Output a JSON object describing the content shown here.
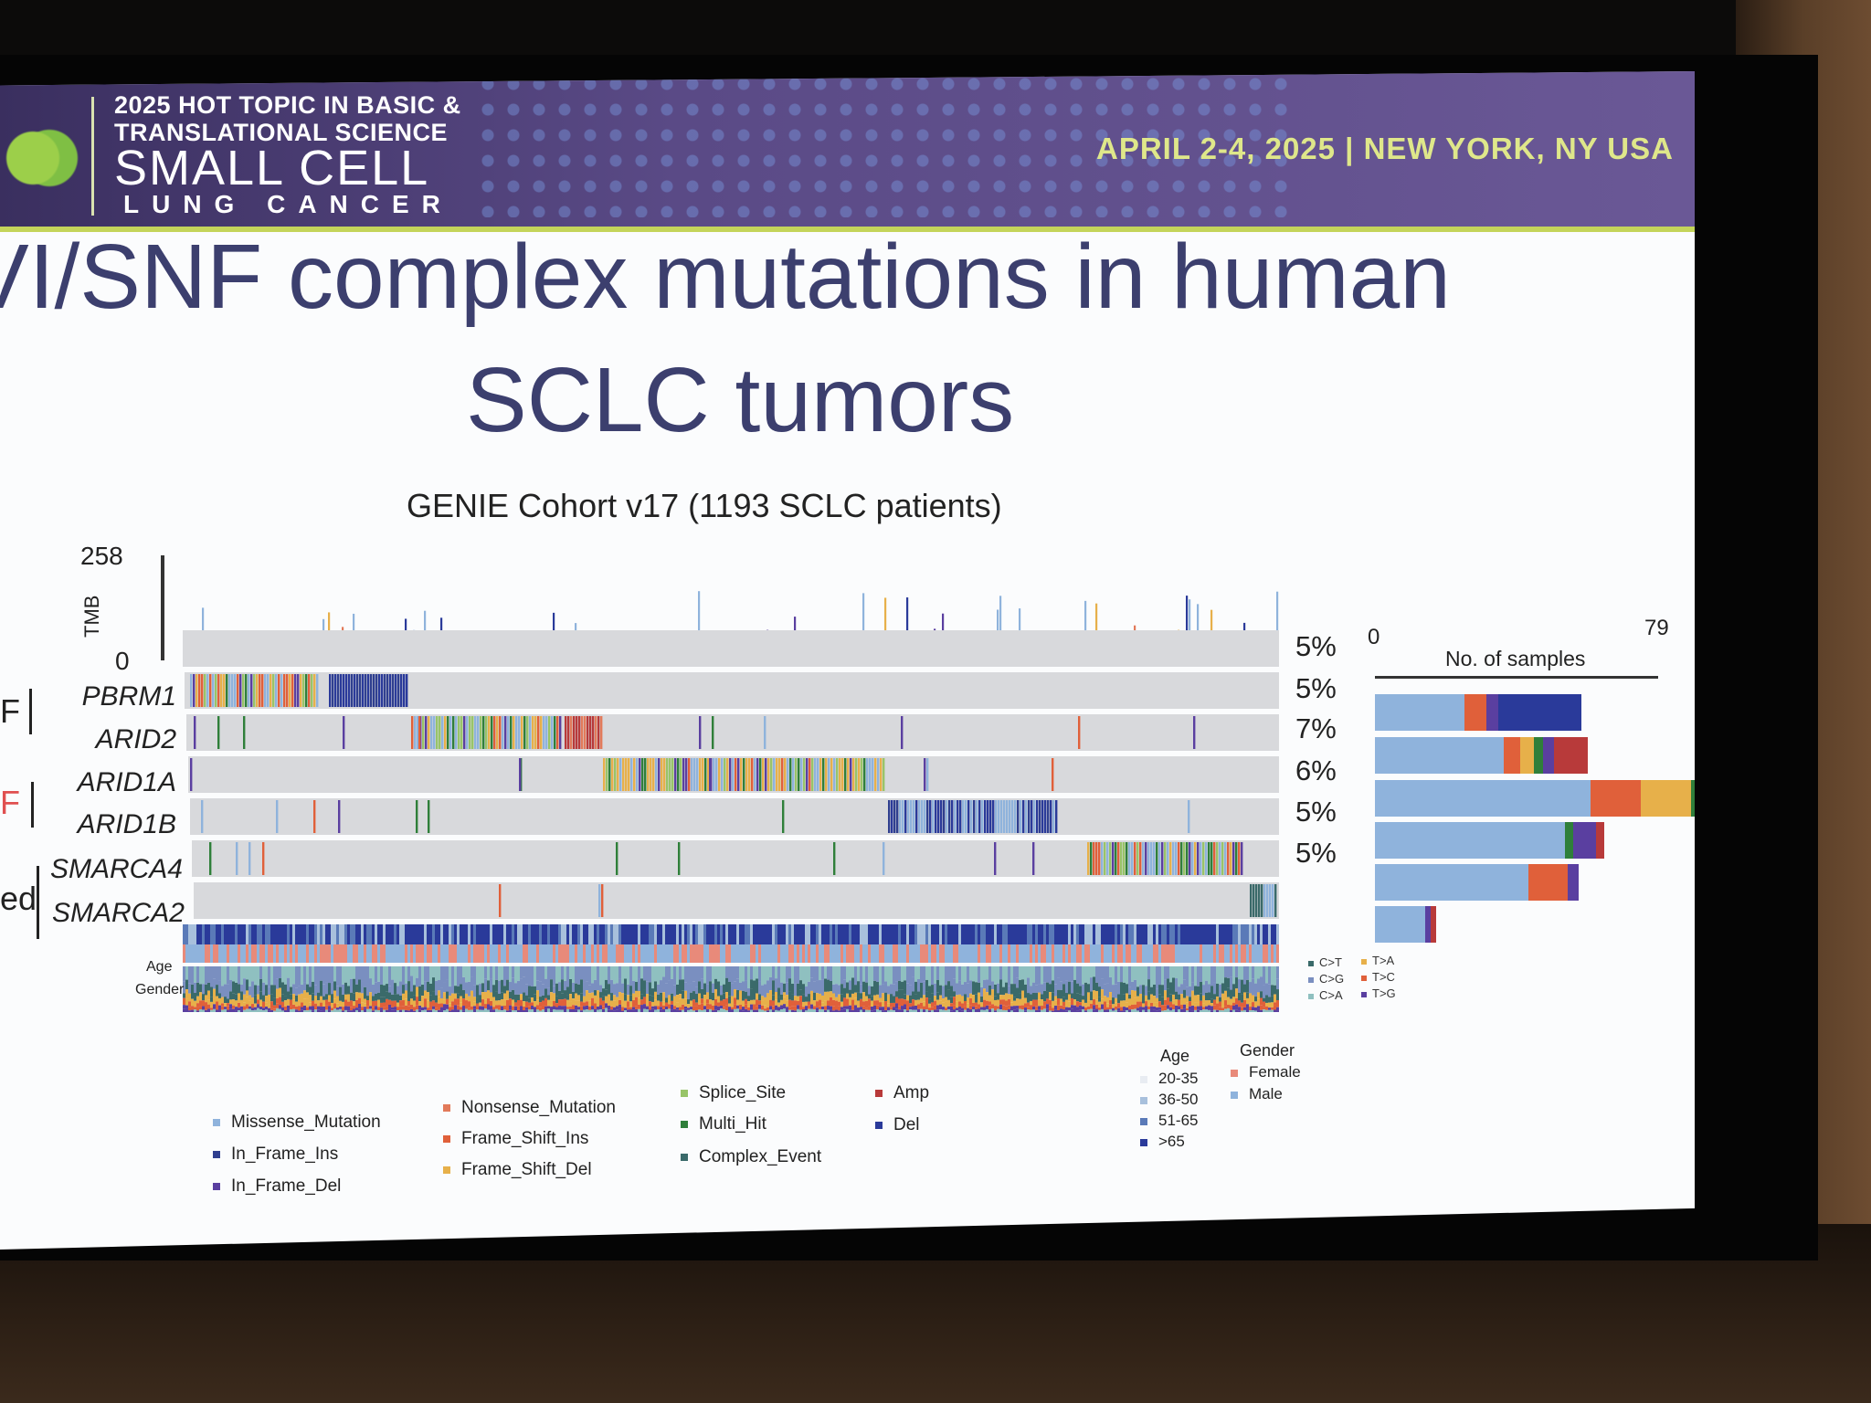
{
  "banner": {
    "line1": "2025 HOT TOPIC IN BASIC &",
    "line2": "TRANSLATIONAL SCIENCE",
    "line3": "SMALL CELL",
    "line4": "LUNG CANCER",
    "date_location": "APRIL 2-4, 2025 | NEW YORK, NY USA"
  },
  "slide": {
    "title_line1": "VI/SNF complex mutations in human",
    "title_line2": "SCLC tumors",
    "subtitle": "GENIE Cohort v17 (1193 SCLC patients)"
  },
  "tmb": {
    "label": "TMB",
    "max": "258",
    "min": "0"
  },
  "genes": [
    {
      "name": "",
      "pct": "5%"
    },
    {
      "name": "PBRM1",
      "pct": "5%"
    },
    {
      "name": "ARID2",
      "pct": "7%"
    },
    {
      "name": "ARID1A",
      "pct": "6%"
    },
    {
      "name": "ARID1B",
      "pct": "5%"
    },
    {
      "name": "SMARCA4",
      "pct": "5%"
    },
    {
      "name": "SMARCA2",
      "pct": ""
    }
  ],
  "group_marks": {
    "a": "F",
    "b": "F",
    "c": "ed"
  },
  "samples_axis": {
    "min": "0",
    "max": "79",
    "label": "No. of samples"
  },
  "clinical_labels": {
    "age": "Age",
    "gender": "Gender"
  },
  "colors": {
    "missense": "#8fb3dc",
    "in_frame_ins": "#2f3f8f",
    "in_frame_del": "#5a3fa0",
    "nonsense": "#e27a5a",
    "frame_shift_ins": "#e0603a",
    "frame_shift_del": "#e7b04a",
    "splice_site": "#98c468",
    "multi_hit": "#2f7f3a",
    "complex_event": "#3a6a6a",
    "amp": "#b83a3a",
    "del": "#2a3a9a",
    "track": "#d8d9dc"
  },
  "legend": {
    "mutations": [
      "Missense_Mutation",
      "In_Frame_Ins",
      "In_Frame_Del",
      "Nonsense_Mutation",
      "Frame_Shift_Ins",
      "Frame_Shift_Del",
      "Splice_Site",
      "Multi_Hit",
      "Complex_Event",
      "Amp",
      "Del"
    ],
    "age_title": "Age",
    "age": [
      "20-35",
      "36-50",
      "51-65",
      ">65"
    ],
    "gender_title": "Gender",
    "gender": [
      "Female",
      "Male"
    ],
    "substitutions": [
      "C>T",
      "C>G",
      "C>A",
      "T>A",
      "T>C",
      "T>G"
    ]
  },
  "chart_data": {
    "type": "bar",
    "title": "",
    "xlabel": "No. of samples",
    "xlim": [
      0,
      79
    ],
    "categories": [
      "",
      "PBRM1",
      "ARID2",
      "ARID1A",
      "ARID1B",
      "SMARCA4"
    ],
    "series": [
      {
        "name": "Missense_Mutation",
        "values": [
          32,
          46,
          77,
          68,
          55,
          18
        ]
      },
      {
        "name": "Frame_Shift_Ins",
        "values": [
          8,
          6,
          18,
          0,
          14,
          0
        ]
      },
      {
        "name": "Frame_Shift_Del",
        "values": [
          0,
          5,
          18,
          0,
          0,
          0
        ]
      },
      {
        "name": "Multi_Hit",
        "values": [
          0,
          3,
          8,
          3,
          0,
          0
        ]
      },
      {
        "name": "In_Frame_Del",
        "values": [
          4,
          4,
          0,
          8,
          4,
          2
        ]
      },
      {
        "name": "Amp",
        "values": [
          0,
          12,
          0,
          3,
          0,
          2
        ]
      },
      {
        "name": "Del",
        "values": [
          30,
          0,
          0,
          0,
          0,
          0
        ]
      }
    ]
  }
}
